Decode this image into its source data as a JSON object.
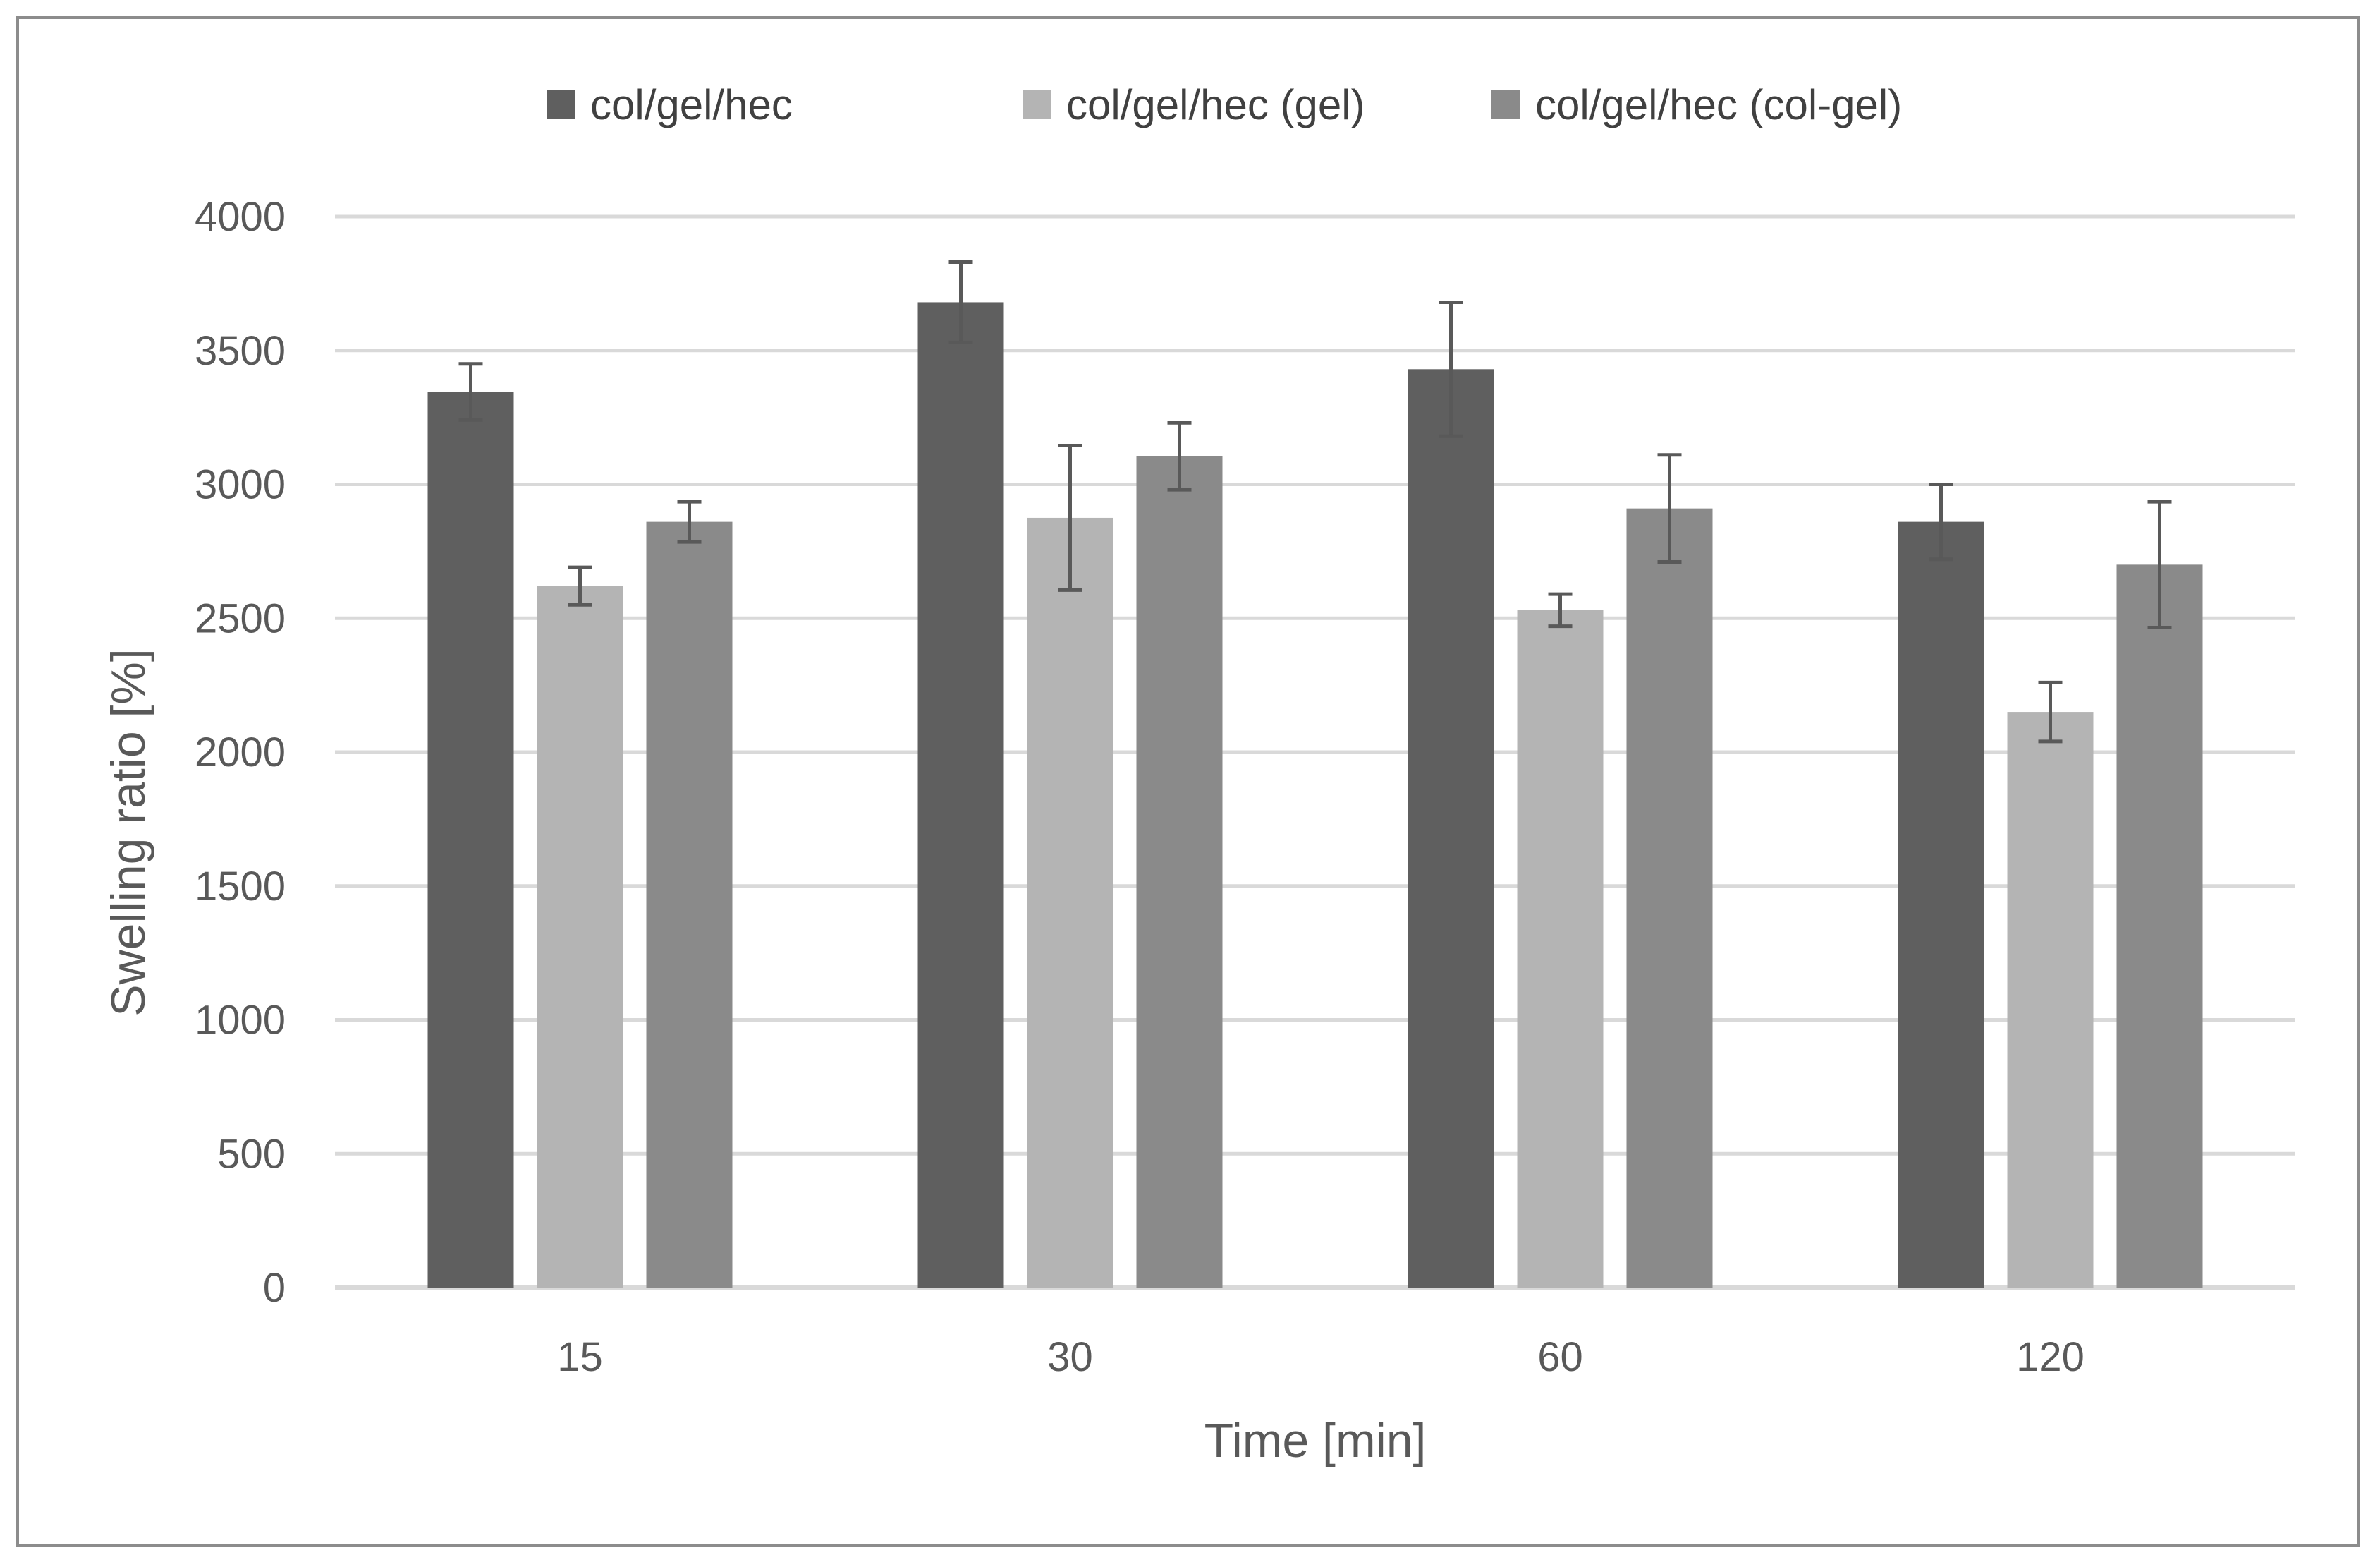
{
  "chart_data": {
    "type": "bar",
    "title": "",
    "xlabel": "Time [min]",
    "ylabel": "Swelling ratio [%]",
    "categories": [
      "15",
      "30",
      "60",
      "120"
    ],
    "ylim": [
      0,
      4000
    ],
    "yticks": [
      0,
      500,
      1000,
      1500,
      2000,
      2500,
      3000,
      3500,
      4000
    ],
    "grid": true,
    "legend_position": "top",
    "series": [
      {
        "name": "col/gel/hec",
        "color": "#5f5f5f",
        "values": [
          3345,
          3680,
          3430,
          2860
        ],
        "errors": [
          105,
          150,
          250,
          140
        ]
      },
      {
        "name": "col/gel/hec (gel)",
        "color": "#b4b4b4",
        "values": [
          2620,
          2875,
          2530,
          2150
        ],
        "errors": [
          70,
          270,
          60,
          110
        ]
      },
      {
        "name": "col/gel/hec (col-gel)",
        "color": "#8a8a8a",
        "values": [
          2860,
          3105,
          2910,
          2700
        ],
        "errors": [
          75,
          125,
          200,
          235
        ]
      }
    ],
    "error_bar_color": "#595959",
    "grid_color": "#d9d9d9",
    "axis_color": "#d9d9d9"
  }
}
